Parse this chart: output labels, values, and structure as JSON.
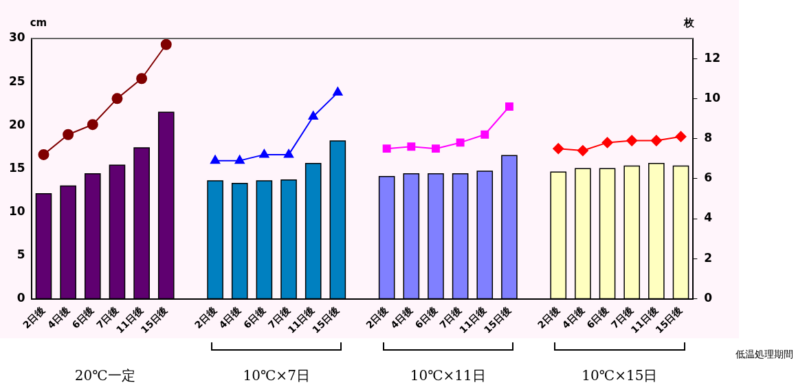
{
  "chart_data": {
    "type": "bar",
    "ylabel": "cm",
    "y2label": "枚",
    "categories": [
      "2日後",
      "4日後",
      "6日後",
      "7日後",
      "11日後",
      "15日後",
      null,
      "2日後",
      "4日後",
      "6日後",
      "7日後",
      "11日後",
      "15日後",
      null,
      "2日後",
      "4日後",
      "6日後",
      "7日後",
      "11日後",
      "15日後",
      null,
      "2日後",
      "4日後",
      "6日後",
      "7日後",
      "11日後",
      "15日後"
    ],
    "series": [
      {
        "color": "#5f0070",
        "values": [
          12.1,
          13.0,
          14.4,
          15.4,
          17.4,
          21.5,
          null,
          null,
          null,
          null,
          null,
          null,
          null,
          null,
          null,
          null,
          null,
          null,
          null,
          null,
          null,
          null,
          null,
          null,
          null,
          null,
          null
        ]
      },
      {
        "color": "#0080c0",
        "values": [
          null,
          null,
          null,
          null,
          null,
          null,
          null,
          13.6,
          13.3,
          13.6,
          13.7,
          15.6,
          18.2,
          null,
          null,
          null,
          null,
          null,
          null,
          null,
          null,
          null,
          null,
          null,
          null,
          null,
          null
        ]
      },
      {
        "color": "#8080ff",
        "values": [
          null,
          null,
          null,
          null,
          null,
          null,
          null,
          null,
          null,
          null,
          null,
          null,
          null,
          null,
          14.1,
          14.4,
          14.4,
          14.4,
          14.7,
          16.5,
          null,
          null,
          null,
          null,
          null,
          null,
          null
        ]
      },
      {
        "color": "#ffffc0",
        "values": [
          null,
          null,
          null,
          null,
          null,
          null,
          null,
          null,
          null,
          null,
          null,
          null,
          null,
          null,
          null,
          null,
          null,
          null,
          null,
          null,
          null,
          14.6,
          15.0,
          15.0,
          15.3,
          15.6,
          15.3
        ]
      },
      {
        "type": "line",
        "axis": "y2",
        "color": "#800000",
        "marker": "circle",
        "values": [
          7.2,
          8.2,
          8.7,
          10.0,
          11.0,
          12.7,
          null,
          null,
          null,
          null,
          null,
          null,
          null,
          null,
          null,
          null,
          null,
          null,
          null,
          null,
          null,
          null,
          null,
          null,
          null,
          null,
          null
        ]
      },
      {
        "type": "line",
        "axis": "y2",
        "color": "#0000ff",
        "marker": "triangle",
        "values": [
          null,
          null,
          null,
          null,
          null,
          null,
          null,
          6.9,
          6.9,
          7.2,
          7.2,
          9.1,
          10.3,
          null,
          null,
          null,
          null,
          null,
          null,
          null,
          null,
          null,
          null,
          null,
          null,
          null,
          null
        ]
      },
      {
        "type": "line",
        "axis": "y2",
        "color": "#ff00ff",
        "marker": "square",
        "values": [
          null,
          null,
          null,
          null,
          null,
          null,
          null,
          null,
          null,
          null,
          null,
          null,
          null,
          null,
          7.5,
          7.6,
          7.5,
          7.8,
          8.2,
          9.6,
          null,
          null,
          null,
          null,
          null,
          null,
          null
        ]
      },
      {
        "type": "line",
        "axis": "y2",
        "color": "#ff0000",
        "marker": "diamond",
        "values": [
          null,
          null,
          null,
          null,
          null,
          null,
          null,
          null,
          null,
          null,
          null,
          null,
          null,
          null,
          null,
          null,
          null,
          null,
          null,
          null,
          null,
          7.5,
          7.4,
          7.8,
          7.9,
          7.9,
          8.1
        ]
      }
    ],
    "ylim": [
      0,
      30
    ],
    "yticks": [
      0,
      5,
      10,
      15,
      20,
      25,
      30
    ],
    "y2lim": [
      0,
      13
    ],
    "y2ticks": [
      0,
      2,
      4,
      6,
      8,
      10,
      12
    ],
    "grid": false,
    "legend": false,
    "annotations": [
      "20℃一定",
      "10℃×7日",
      "10℃×11日",
      "10℃×15日",
      "低温処理期間"
    ]
  }
}
